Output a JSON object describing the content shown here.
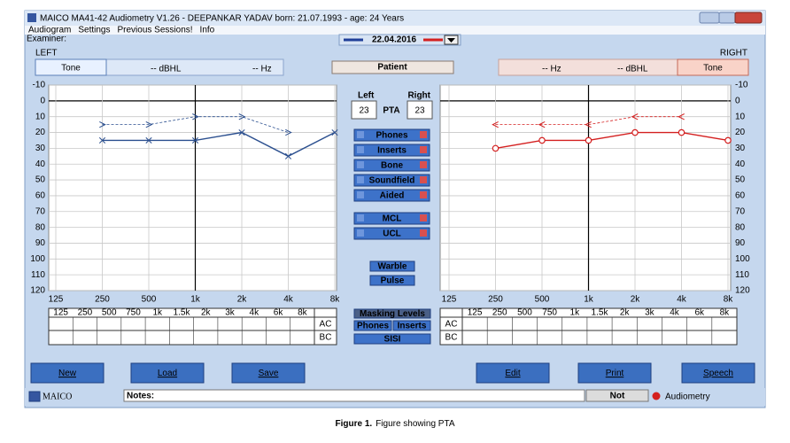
{
  "window": {
    "title": "MAICO MA41-42 Audiometry V1.26 - DEEPANKAR YADAV   born: 21.07.1993 - age: 24 Years"
  },
  "menu": [
    "Audiogram",
    "Settings",
    "Previous Sessions!",
    "Info"
  ],
  "examiner": "Examiner:",
  "date": "22.04.2016",
  "left": {
    "side": "LEFT",
    "mode": "Tone",
    "level": "-- dBHL",
    "freq": "-- Hz"
  },
  "right": {
    "side": "RIGHT",
    "mode": "Tone",
    "level": "-- dBHL",
    "freq": "-- Hz"
  },
  "patient": "Patient",
  "pta": {
    "left_label": "Left",
    "right_label": "Right",
    "label": "PTA",
    "left": 23,
    "right": 23
  },
  "transducers": [
    "Phones",
    "Inserts",
    "Bone",
    "Soundfield",
    "Aided"
  ],
  "comfort": [
    "MCL",
    "UCL"
  ],
  "stimulus": [
    "Warble",
    "Pulse"
  ],
  "masking": {
    "title": "Masking Levels",
    "buttons": [
      "Phones",
      "Inserts"
    ],
    "sisi": "SISI"
  },
  "table": {
    "header": [
      "125",
      "250",
      "500",
      "750",
      "1k",
      "1.5k",
      "2k",
      "3k",
      "4k",
      "6k",
      "8k"
    ],
    "rows": [
      "AC",
      "BC"
    ]
  },
  "buttons": [
    "New",
    "Load",
    "Save",
    "Edit",
    "Print",
    "Speech"
  ],
  "status": {
    "brand": "MAICO",
    "notes": "Notes:",
    "state": "Not",
    "app": "Audiometry"
  },
  "caption": {
    "label": "Figure 1.",
    "text": "Figure showing   PTA"
  },
  "chart_data": [
    {
      "type": "line",
      "categories": [
        "125",
        "250",
        "500",
        "1k",
        "2k",
        "4k",
        "8k"
      ],
      "ylim": [
        -10,
        120
      ],
      "y_reversed": true,
      "ytick_side": "left",
      "yticks": [
        -10,
        0,
        10,
        20,
        30,
        40,
        50,
        60,
        70,
        80,
        90,
        100,
        110,
        120
      ],
      "grid": true,
      "series": [
        {
          "color": "#2b4f8f",
          "marker": "x",
          "dashed": false,
          "values": [
            null,
            25,
            25,
            25,
            20,
            35,
            20
          ]
        },
        {
          "color": "#2b4f8f",
          "marker": ">",
          "dashed": true,
          "values": [
            null,
            15,
            15,
            10,
            10,
            20,
            null
          ]
        }
      ]
    },
    {
      "type": "line",
      "categories": [
        "125",
        "250",
        "500",
        "1k",
        "2k",
        "4k",
        "8k"
      ],
      "ylim": [
        -10,
        120
      ],
      "y_reversed": true,
      "ytick_side": "right",
      "yticks": [
        -10,
        0,
        10,
        20,
        30,
        40,
        50,
        60,
        70,
        80,
        90,
        100,
        110,
        120
      ],
      "grid": true,
      "series": [
        {
          "color": "#d42020",
          "marker": "o",
          "dashed": false,
          "values": [
            null,
            30,
            25,
            25,
            20,
            20,
            25
          ]
        },
        {
          "color": "#d42020",
          "marker": "<",
          "dashed": true,
          "values": [
            null,
            15,
            15,
            15,
            10,
            10,
            null
          ]
        }
      ]
    }
  ]
}
